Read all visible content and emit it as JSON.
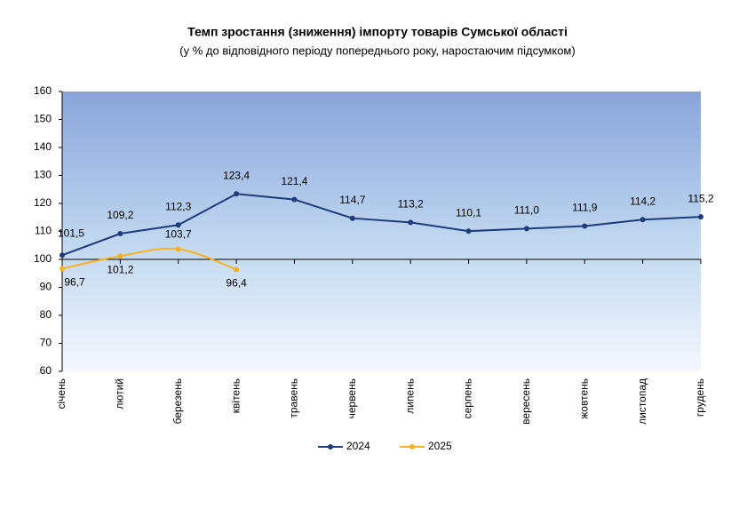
{
  "chart_data": {
    "type": "line",
    "title": "Темп зростання (зниження) імпорту товарів Сумської області",
    "subtitle": "(у % до відповідного періоду попереднього року, наростаючим підсумком)",
    "categories": [
      "січень",
      "лютий",
      "березень",
      "квітень",
      "травень",
      "червень",
      "липень",
      "серпень",
      "вересень",
      "жовтень",
      "листопад",
      "грудень"
    ],
    "series": [
      {
        "name": "2024",
        "color": "#1f3b7a",
        "smooth": false,
        "values": [
          101.5,
          109.2,
          112.3,
          123.4,
          121.4,
          114.7,
          113.2,
          110.1,
          111.0,
          111.9,
          114.2,
          115.2
        ],
        "value_labels": [
          "101,5",
          "109,2",
          "112,3",
          "123,4",
          "121,4",
          "114,7",
          "113,2",
          "110,1",
          "111,0",
          "111,9",
          "114,2",
          "115,2"
        ]
      },
      {
        "name": "2025",
        "color": "#f5b324",
        "smooth": true,
        "values": [
          96.7,
          101.2,
          103.7,
          96.4,
          null,
          null,
          null,
          null,
          null,
          null,
          null,
          null
        ],
        "value_labels": [
          "96,7",
          "101,2",
          "103,7",
          "96,4",
          null,
          null,
          null,
          null,
          null,
          null,
          null,
          null
        ]
      }
    ],
    "ylim": [
      60,
      160
    ],
    "yticks": [
      60,
      70,
      80,
      90,
      100,
      110,
      120,
      130,
      140,
      150,
      160
    ],
    "axis_crossing": 100,
    "legend": "bottom"
  }
}
